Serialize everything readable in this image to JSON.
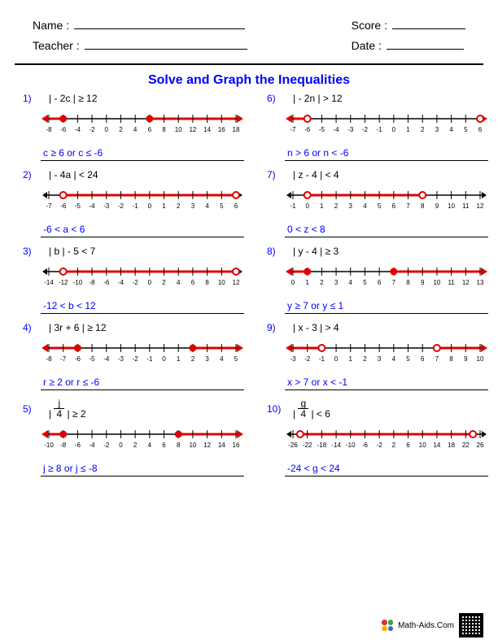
{
  "header": {
    "name_label": "Name :",
    "teacher_label": "Teacher :",
    "score_label": "Score :",
    "date_label": "Date :"
  },
  "title": "Solve and Graph the Inequalities",
  "line_color": "#e00000",
  "point_fill": "#e00000",
  "point_open_stroke": "#e00000",
  "tick_color": "#000000",
  "tick_label_color": "#000000",
  "answer_color": "#0000ff",
  "problems": [
    {
      "num": "1)",
      "ineq": "| - 2c | ≥ 12",
      "answer": "c ≥ 6   or   c ≤ -6",
      "ticks": [
        -8,
        -6,
        -4,
        -2,
        0,
        2,
        4,
        6,
        8,
        10,
        12,
        14,
        16,
        18
      ],
      "min": -8,
      "max": 18,
      "points": [
        {
          "v": -6,
          "filled": true
        },
        {
          "v": 6,
          "filled": true
        }
      ],
      "segments": [
        {
          "from": -8,
          "to": -6,
          "leftArrow": true
        },
        {
          "from": 6,
          "to": 18,
          "rightArrow": true
        }
      ]
    },
    {
      "num": "6)",
      "ineq": "| - 2n | > 12",
      "answer": "n > 6   or   n < -6",
      "ticks": [
        -7,
        -6,
        -5,
        -4,
        -3,
        -2,
        -1,
        0,
        1,
        2,
        3,
        4,
        5,
        6
      ],
      "min": -7,
      "max": 6,
      "points": [
        {
          "v": -6,
          "filled": false
        },
        {
          "v": 6,
          "filled": false
        }
      ],
      "segments": [
        {
          "from": -7,
          "to": -6,
          "leftArrow": true
        },
        {
          "from": 6,
          "to": 6,
          "rightArrow": true
        }
      ]
    },
    {
      "num": "2)",
      "ineq": "| - 4a | < 24",
      "answer": "-6 < a < 6",
      "ticks": [
        -7,
        -6,
        -5,
        -4,
        -3,
        -2,
        -1,
        0,
        1,
        2,
        3,
        4,
        5,
        6
      ],
      "min": -7,
      "max": 6,
      "points": [
        {
          "v": -6,
          "filled": false
        },
        {
          "v": 6,
          "filled": false
        }
      ],
      "segments": [
        {
          "from": -6,
          "to": 6
        }
      ]
    },
    {
      "num": "7)",
      "ineq": "| z - 4 | < 4",
      "answer": "0 < z < 8",
      "ticks": [
        -1,
        0,
        1,
        2,
        3,
        4,
        5,
        6,
        7,
        8,
        9,
        10,
        11,
        12
      ],
      "min": -1,
      "max": 12,
      "points": [
        {
          "v": 0,
          "filled": false
        },
        {
          "v": 8,
          "filled": false
        }
      ],
      "segments": [
        {
          "from": 0,
          "to": 8
        }
      ]
    },
    {
      "num": "3)",
      "ineq": "| b | - 5 < 7",
      "answer": "-12 < b < 12",
      "ticks": [
        -14,
        -12,
        -10,
        -8,
        -6,
        -4,
        -2,
        0,
        2,
        4,
        6,
        8,
        10,
        12
      ],
      "min": -14,
      "max": 12,
      "points": [
        {
          "v": -12,
          "filled": false
        },
        {
          "v": 12,
          "filled": false
        }
      ],
      "segments": [
        {
          "from": -12,
          "to": 12
        }
      ]
    },
    {
      "num": "8)",
      "ineq": "| y - 4 | ≥ 3",
      "answer": "y ≥ 7   or   y ≤ 1",
      "ticks": [
        0,
        1,
        2,
        3,
        4,
        5,
        6,
        7,
        8,
        9,
        10,
        11,
        12,
        13
      ],
      "min": 0,
      "max": 13,
      "points": [
        {
          "v": 1,
          "filled": true
        },
        {
          "v": 7,
          "filled": true
        }
      ],
      "segments": [
        {
          "from": 0,
          "to": 1,
          "leftArrow": true
        },
        {
          "from": 7,
          "to": 13,
          "rightArrow": true
        }
      ]
    },
    {
      "num": "4)",
      "ineq": "| 3r + 6 | ≥ 12",
      "answer": "r ≥ 2   or   r ≤ -6",
      "ticks": [
        -8,
        -7,
        -6,
        -5,
        -4,
        -3,
        -2,
        -1,
        0,
        1,
        2,
        3,
        4,
        5
      ],
      "min": -8,
      "max": 5,
      "points": [
        {
          "v": -6,
          "filled": true
        },
        {
          "v": 2,
          "filled": true
        }
      ],
      "segments": [
        {
          "from": -8,
          "to": -6,
          "leftArrow": true
        },
        {
          "from": 2,
          "to": 5,
          "rightArrow": true
        }
      ]
    },
    {
      "num": "9)",
      "ineq": "| x - 3 | > 4",
      "answer": "x > 7   or   x < -1",
      "ticks": [
        -3,
        -2,
        -1,
        0,
        1,
        2,
        3,
        4,
        5,
        6,
        7,
        8,
        9,
        10
      ],
      "min": -3,
      "max": 10,
      "points": [
        {
          "v": -1,
          "filled": false
        },
        {
          "v": 7,
          "filled": false
        }
      ],
      "segments": [
        {
          "from": -3,
          "to": -1,
          "leftArrow": true
        },
        {
          "from": 7,
          "to": 10,
          "rightArrow": true
        }
      ]
    },
    {
      "num": "5)",
      "ineq_html": "| <span style='display:inline-block;text-align:center;line-height:1'><span style='display:block;border-bottom:1px solid #000;padding:0 3px'>j</span><span style='display:block;padding:0 3px'>4</span></span> | ≥ 2",
      "answer": "j ≥ 8   or   j ≤ -8",
      "ticks": [
        -10,
        -8,
        -6,
        -4,
        -2,
        0,
        2,
        4,
        6,
        8,
        10,
        12,
        14,
        16
      ],
      "min": -10,
      "max": 16,
      "points": [
        {
          "v": -8,
          "filled": true
        },
        {
          "v": 8,
          "filled": true
        }
      ],
      "segments": [
        {
          "from": -10,
          "to": -8,
          "leftArrow": true
        },
        {
          "from": 8,
          "to": 16,
          "rightArrow": true
        }
      ]
    },
    {
      "num": "10)",
      "ineq_html": "| <span style='display:inline-block;text-align:center;line-height:1'><span style='display:block;border-bottom:1px solid #000;padding:0 3px'>g</span><span style='display:block;padding:0 3px'>4</span></span> | < 6",
      "answer": "-24 < g < 24",
      "ticks": [
        -26,
        -22,
        -18,
        -14,
        -10,
        -6,
        -2,
        2,
        6,
        10,
        14,
        18,
        22,
        26
      ],
      "min": -26,
      "max": 26,
      "points": [
        {
          "v": -24,
          "filled": false
        },
        {
          "v": 24,
          "filled": false
        }
      ],
      "segments": [
        {
          "from": -24,
          "to": 24
        }
      ]
    }
  ],
  "footer": "Math-Aids.Com"
}
